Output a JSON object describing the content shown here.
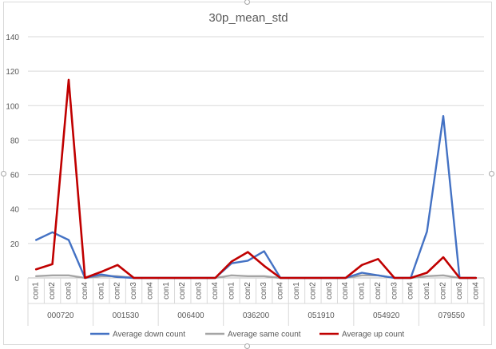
{
  "chart_data": {
    "type": "line",
    "title": "30p_mean_std",
    "xlabel": "",
    "ylabel": "",
    "ylim": [
      0,
      140
    ],
    "yticks": [
      0,
      20,
      40,
      60,
      80,
      100,
      120,
      140
    ],
    "grid": true,
    "legend_position": "bottom",
    "groups": [
      "000720",
      "001530",
      "006400",
      "036200",
      "051910",
      "054920",
      "079550"
    ],
    "sub_categories": [
      "con1",
      "con2",
      "con3",
      "con4"
    ],
    "series": [
      {
        "name": "Average down count",
        "color": "#4472c4",
        "values": [
          22,
          26.5,
          22,
          0,
          2,
          0.5,
          0,
          0,
          0,
          0,
          0,
          0,
          8.5,
          10,
          15.5,
          0,
          0,
          0,
          0,
          0,
          3,
          1.5,
          0,
          0,
          27,
          94,
          0,
          0
        ]
      },
      {
        "name": "Average same count",
        "color": "#a5a5a5",
        "values": [
          1,
          1.5,
          1.5,
          0,
          1,
          1,
          0,
          0,
          0,
          0,
          0,
          0,
          1.5,
          1,
          1,
          0,
          0,
          0,
          0,
          0,
          1.5,
          1.5,
          0,
          0,
          1,
          1.5,
          0,
          0
        ]
      },
      {
        "name": "Average up count",
        "color": "#c00000",
        "values": [
          5,
          8,
          115,
          0,
          3.5,
          7.5,
          0,
          0,
          0,
          0,
          0,
          0,
          9.5,
          15,
          7,
          0,
          0,
          0,
          0,
          0,
          7.5,
          11,
          0,
          0,
          3,
          12,
          0,
          0
        ]
      }
    ]
  }
}
